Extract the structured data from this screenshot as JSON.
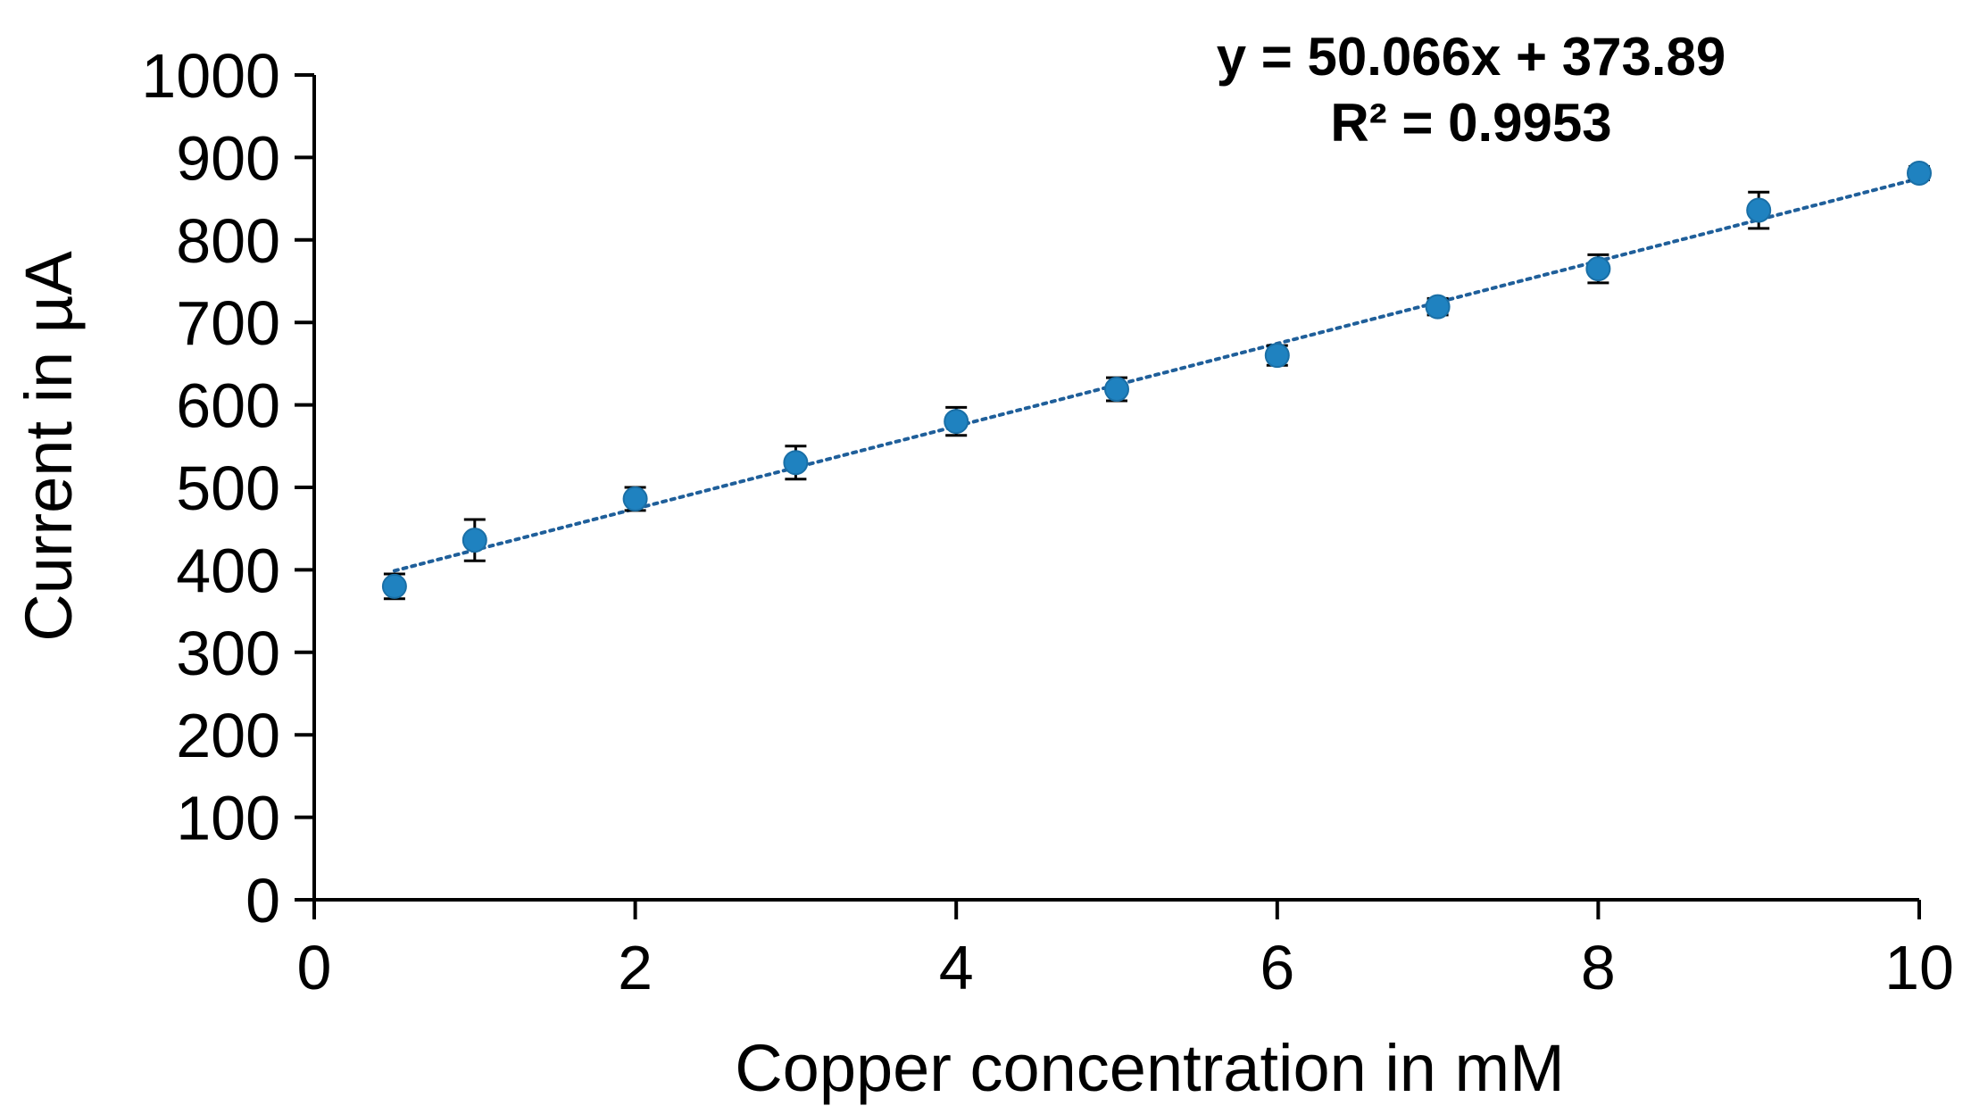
{
  "chart_data": {
    "type": "scatter",
    "xlabel": "Copper concentration in mM",
    "ylabel": "Current in µA",
    "xlim": [
      0,
      10
    ],
    "ylim": [
      0,
      1000
    ],
    "x_ticks": [
      0,
      2,
      4,
      6,
      8,
      10
    ],
    "y_ticks": [
      0,
      100,
      200,
      300,
      400,
      500,
      600,
      700,
      800,
      900,
      1000
    ],
    "grid": false,
    "series": [
      {
        "points": [
          {
            "x": 0.5,
            "y": 380,
            "err": 15
          },
          {
            "x": 1,
            "y": 436,
            "err": 25
          },
          {
            "x": 2,
            "y": 486,
            "err": 14
          },
          {
            "x": 3,
            "y": 530,
            "err": 20
          },
          {
            "x": 4,
            "y": 580,
            "err": 17
          },
          {
            "x": 5,
            "y": 619,
            "err": 14
          },
          {
            "x": 6,
            "y": 660,
            "err": 12
          },
          {
            "x": 7,
            "y": 719,
            "err": 10
          },
          {
            "x": 8,
            "y": 765,
            "err": 17
          },
          {
            "x": 9,
            "y": 836,
            "err": 22
          },
          {
            "x": 10,
            "y": 881,
            "err": 8
          }
        ]
      }
    ],
    "trendline": {
      "slope": 50.066,
      "intercept": 373.89,
      "x_range": [
        0.5,
        10
      ],
      "style": "dotted"
    },
    "annotations": {
      "equation": "y = 50.066x + 373.89",
      "r_squared": "R² = 0.9953"
    },
    "colors": {
      "marker": "#1f82c0",
      "trendline": "#1f5f9a",
      "axis": "#000000"
    }
  }
}
